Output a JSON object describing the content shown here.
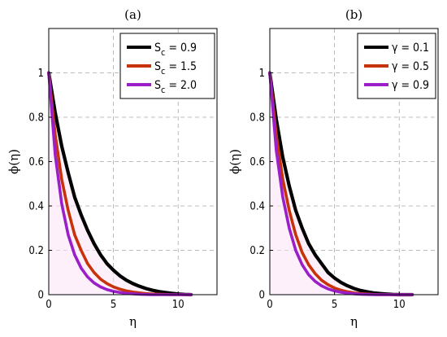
{
  "chart_data": [
    {
      "type": "line",
      "title": "(a)",
      "xlabel": "η",
      "ylabel": "ϕ(η)",
      "xlim": [
        0,
        13
      ],
      "ylim": [
        0,
        1.2
      ],
      "xticks": [
        "0",
        "5",
        "10"
      ],
      "yticks": [
        "0",
        "0.2",
        "0.4",
        "0.6",
        "0.8",
        "1"
      ],
      "grid": true,
      "legend_position": "top-right",
      "series": [
        {
          "name": "S c = 0.9",
          "legend_main": "S",
          "legend_sub": "c",
          "legend_rest": " = 0.9",
          "color": "#000000",
          "x": [
            0,
            0.5,
            1,
            1.5,
            2,
            2.5,
            3,
            3.5,
            4,
            4.5,
            5,
            5.5,
            6,
            6.5,
            7,
            7.5,
            8,
            8.5,
            9,
            9.5,
            10,
            10.5,
            11
          ],
          "y": [
            1,
            0.82,
            0.67,
            0.55,
            0.44,
            0.36,
            0.29,
            0.23,
            0.18,
            0.14,
            0.11,
            0.085,
            0.065,
            0.05,
            0.038,
            0.028,
            0.02,
            0.014,
            0.01,
            0.006,
            0.003,
            0.001,
            0
          ]
        },
        {
          "name": "S c = 1.5",
          "legend_main": "S",
          "legend_sub": "c",
          "legend_rest": " = 1.5",
          "color": "#c8320a",
          "x": [
            0,
            0.5,
            1,
            1.5,
            2,
            2.5,
            3,
            3.5,
            4,
            4.5,
            5,
            5.5,
            6,
            6.5,
            7,
            7.5,
            8,
            8.5,
            9,
            9.5,
            10,
            10.5,
            11
          ],
          "y": [
            1,
            0.72,
            0.52,
            0.38,
            0.27,
            0.2,
            0.14,
            0.1,
            0.07,
            0.05,
            0.035,
            0.025,
            0.017,
            0.012,
            0.008,
            0.005,
            0.003,
            0.002,
            0.001,
            0,
            0,
            0,
            0
          ]
        },
        {
          "name": "S c = 2.0",
          "legend_main": "S",
          "legend_sub": "c",
          "legend_rest": " = 2.0",
          "color": "#9b1fc9",
          "x": [
            0,
            0.5,
            1,
            1.5,
            2,
            2.5,
            3,
            3.5,
            4,
            4.5,
            5,
            5.5,
            6,
            6.5,
            7,
            7.5,
            8,
            8.5,
            9,
            9.5,
            10,
            10.5,
            11
          ],
          "y": [
            1,
            0.63,
            0.41,
            0.27,
            0.18,
            0.12,
            0.08,
            0.053,
            0.035,
            0.023,
            0.015,
            0.01,
            0.006,
            0.004,
            0.002,
            0.001,
            0,
            0,
            0,
            0,
            0,
            0,
            0
          ]
        }
      ]
    },
    {
      "type": "line",
      "title": "(b)",
      "xlabel": "η",
      "ylabel": "ϕ(η)",
      "xlim": [
        0,
        13
      ],
      "ylim": [
        0,
        1.2
      ],
      "xticks": [
        "0",
        "5",
        "10"
      ],
      "yticks": [
        "0",
        "0.2",
        "0.4",
        "0.6",
        "0.8",
        "1"
      ],
      "grid": true,
      "legend_position": "top-right",
      "series": [
        {
          "name": "γ = 0.1",
          "legend_main": "γ",
          "legend_sub": "",
          "legend_rest": " = 0.1",
          "color": "#000000",
          "x": [
            0,
            0.5,
            1,
            1.5,
            2,
            2.5,
            3,
            3.5,
            4,
            4.5,
            5,
            5.5,
            6,
            6.5,
            7,
            7.5,
            8,
            8.5,
            9,
            9.5,
            10,
            10.5,
            11
          ],
          "y": [
            1,
            0.79,
            0.62,
            0.49,
            0.38,
            0.3,
            0.23,
            0.18,
            0.14,
            0.1,
            0.075,
            0.055,
            0.04,
            0.028,
            0.019,
            0.013,
            0.008,
            0.005,
            0.003,
            0.001,
            0,
            0,
            0
          ]
        },
        {
          "name": "γ = 0.5",
          "legend_main": "γ",
          "legend_sub": "",
          "legend_rest": " = 0.5",
          "color": "#c8320a",
          "x": [
            0,
            0.5,
            1,
            1.5,
            2,
            2.5,
            3,
            3.5,
            4,
            4.5,
            5,
            5.5,
            6,
            6.5,
            7,
            7.5,
            8,
            8.5,
            9,
            9.5,
            10,
            10.5,
            11
          ],
          "y": [
            1,
            0.72,
            0.52,
            0.38,
            0.27,
            0.19,
            0.135,
            0.095,
            0.065,
            0.045,
            0.03,
            0.02,
            0.013,
            0.008,
            0.005,
            0.003,
            0.001,
            0,
            0,
            0,
            0,
            0,
            0
          ]
        },
        {
          "name": "γ = 0.9",
          "legend_main": "γ",
          "legend_sub": "",
          "legend_rest": " = 0.9",
          "color": "#9b1fc9",
          "x": [
            0,
            0.5,
            1,
            1.5,
            2,
            2.5,
            3,
            3.5,
            4,
            4.5,
            5,
            5.5,
            6,
            6.5,
            7,
            7.5,
            8,
            8.5,
            9,
            9.5,
            10,
            10.5,
            11
          ],
          "y": [
            1,
            0.65,
            0.44,
            0.3,
            0.2,
            0.135,
            0.09,
            0.06,
            0.04,
            0.026,
            0.017,
            0.011,
            0.007,
            0.004,
            0.002,
            0.001,
            0,
            0,
            0,
            0,
            0,
            0,
            0
          ]
        }
      ]
    }
  ]
}
